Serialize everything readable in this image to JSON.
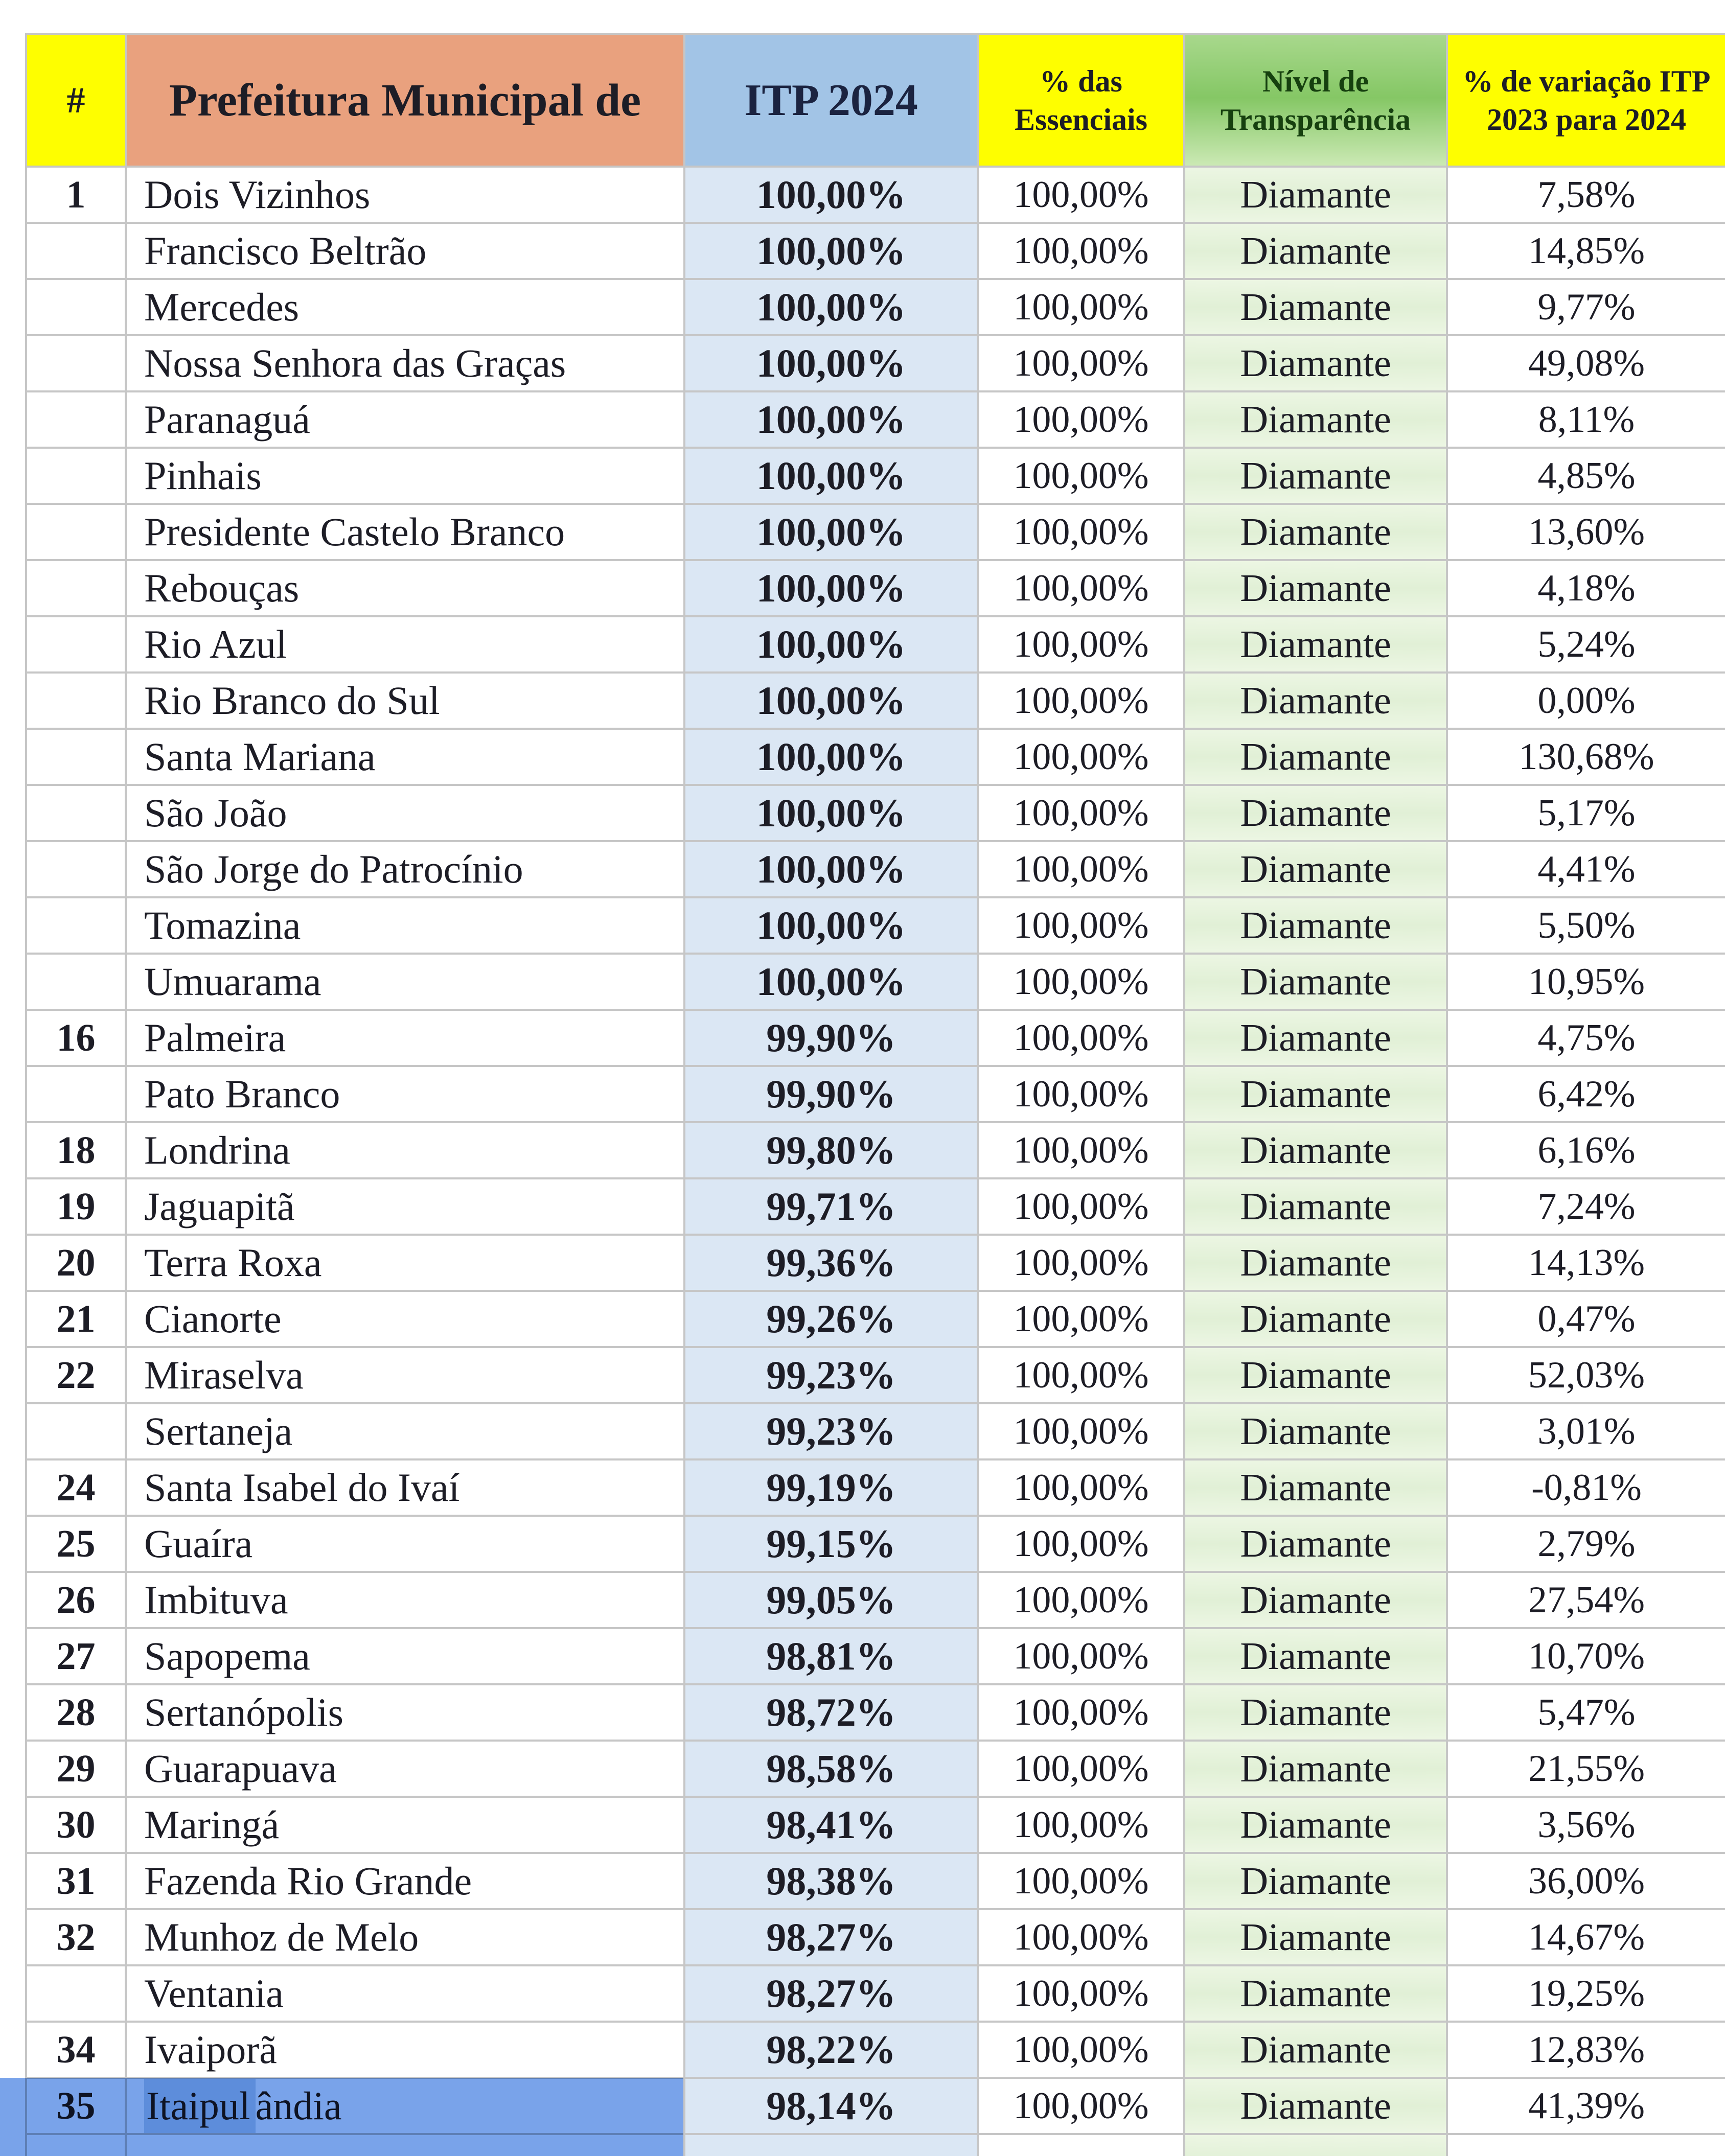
{
  "document": {
    "kind": "municipal-transparency-ranking-table",
    "language": "pt-BR"
  },
  "table": {
    "columns": [
      {
        "id": "rank",
        "label": "#"
      },
      {
        "id": "name",
        "label": "Prefeitura Municipal de"
      },
      {
        "id": "itp",
        "label": "ITP 2024"
      },
      {
        "id": "essenciais",
        "label": "% das Essenciais"
      },
      {
        "id": "nivel",
        "label": "Nível de Transparência"
      },
      {
        "id": "variacao",
        "label": "% de variação ITP 2023 para 2024"
      }
    ],
    "rows": [
      {
        "rank": "1",
        "name": "Dois Vizinhos",
        "itp": "100,00%",
        "essenciais": "100,00%",
        "nivel": "Diamante",
        "variacao": "7,58%",
        "highlighted": false
      },
      {
        "rank": "",
        "name": "Francisco Beltrão",
        "itp": "100,00%",
        "essenciais": "100,00%",
        "nivel": "Diamante",
        "variacao": "14,85%",
        "highlighted": false
      },
      {
        "rank": "",
        "name": "Mercedes",
        "itp": "100,00%",
        "essenciais": "100,00%",
        "nivel": "Diamante",
        "variacao": "9,77%",
        "highlighted": false
      },
      {
        "rank": "",
        "name": "Nossa Senhora das Graças",
        "itp": "100,00%",
        "essenciais": "100,00%",
        "nivel": "Diamante",
        "variacao": "49,08%",
        "highlighted": false
      },
      {
        "rank": "",
        "name": "Paranaguá",
        "itp": "100,00%",
        "essenciais": "100,00%",
        "nivel": "Diamante",
        "variacao": "8,11%",
        "highlighted": false
      },
      {
        "rank": "",
        "name": "Pinhais",
        "itp": "100,00%",
        "essenciais": "100,00%",
        "nivel": "Diamante",
        "variacao": "4,85%",
        "highlighted": false
      },
      {
        "rank": "",
        "name": "Presidente Castelo Branco",
        "itp": "100,00%",
        "essenciais": "100,00%",
        "nivel": "Diamante",
        "variacao": "13,60%",
        "highlighted": false
      },
      {
        "rank": "",
        "name": "Rebouças",
        "itp": "100,00%",
        "essenciais": "100,00%",
        "nivel": "Diamante",
        "variacao": "4,18%",
        "highlighted": false
      },
      {
        "rank": "",
        "name": "Rio Azul",
        "itp": "100,00%",
        "essenciais": "100,00%",
        "nivel": "Diamante",
        "variacao": "5,24%",
        "highlighted": false
      },
      {
        "rank": "",
        "name": "Rio Branco do Sul",
        "itp": "100,00%",
        "essenciais": "100,00%",
        "nivel": "Diamante",
        "variacao": "0,00%",
        "highlighted": false
      },
      {
        "rank": "",
        "name": "Santa Mariana",
        "itp": "100,00%",
        "essenciais": "100,00%",
        "nivel": "Diamante",
        "variacao": "130,68%",
        "highlighted": false
      },
      {
        "rank": "",
        "name": "São João",
        "itp": "100,00%",
        "essenciais": "100,00%",
        "nivel": "Diamante",
        "variacao": "5,17%",
        "highlighted": false
      },
      {
        "rank": "",
        "name": "São Jorge do Patrocínio",
        "itp": "100,00%",
        "essenciais": "100,00%",
        "nivel": "Diamante",
        "variacao": "4,41%",
        "highlighted": false
      },
      {
        "rank": "",
        "name": "Tomazina",
        "itp": "100,00%",
        "essenciais": "100,00%",
        "nivel": "Diamante",
        "variacao": "5,50%",
        "highlighted": false
      },
      {
        "rank": "",
        "name": "Umuarama",
        "itp": "100,00%",
        "essenciais": "100,00%",
        "nivel": "Diamante",
        "variacao": "10,95%",
        "highlighted": false
      },
      {
        "rank": "16",
        "name": "Palmeira",
        "itp": "99,90%",
        "essenciais": "100,00%",
        "nivel": "Diamante",
        "variacao": "4,75%",
        "highlighted": false
      },
      {
        "rank": "",
        "name": "Pato Branco",
        "itp": "99,90%",
        "essenciais": "100,00%",
        "nivel": "Diamante",
        "variacao": "6,42%",
        "highlighted": false
      },
      {
        "rank": "18",
        "name": "Londrina",
        "itp": "99,80%",
        "essenciais": "100,00%",
        "nivel": "Diamante",
        "variacao": "6,16%",
        "highlighted": false
      },
      {
        "rank": "19",
        "name": "Jaguapitã",
        "itp": "99,71%",
        "essenciais": "100,00%",
        "nivel": "Diamante",
        "variacao": "7,24%",
        "highlighted": false
      },
      {
        "rank": "20",
        "name": "Terra Roxa",
        "itp": "99,36%",
        "essenciais": "100,00%",
        "nivel": "Diamante",
        "variacao": "14,13%",
        "highlighted": false
      },
      {
        "rank": "21",
        "name": "Cianorte",
        "itp": "99,26%",
        "essenciais": "100,00%",
        "nivel": "Diamante",
        "variacao": "0,47%",
        "highlighted": false
      },
      {
        "rank": "22",
        "name": "Miraselva",
        "itp": "99,23%",
        "essenciais": "100,00%",
        "nivel": "Diamante",
        "variacao": "52,03%",
        "highlighted": false
      },
      {
        "rank": "",
        "name": "Sertaneja",
        "itp": "99,23%",
        "essenciais": "100,00%",
        "nivel": "Diamante",
        "variacao": "3,01%",
        "highlighted": false
      },
      {
        "rank": "24",
        "name": "Santa Isabel do Ivaí",
        "itp": "99,19%",
        "essenciais": "100,00%",
        "nivel": "Diamante",
        "variacao": "-0,81%",
        "highlighted": false
      },
      {
        "rank": "25",
        "name": "Guaíra",
        "itp": "99,15%",
        "essenciais": "100,00%",
        "nivel": "Diamante",
        "variacao": "2,79%",
        "highlighted": false
      },
      {
        "rank": "26",
        "name": "Imbituva",
        "itp": "99,05%",
        "essenciais": "100,00%",
        "nivel": "Diamante",
        "variacao": "27,54%",
        "highlighted": false
      },
      {
        "rank": "27",
        "name": "Sapopema",
        "itp": "98,81%",
        "essenciais": "100,00%",
        "nivel": "Diamante",
        "variacao": "10,70%",
        "highlighted": false
      },
      {
        "rank": "28",
        "name": "Sertanópolis",
        "itp": "98,72%",
        "essenciais": "100,00%",
        "nivel": "Diamante",
        "variacao": "5,47%",
        "highlighted": false
      },
      {
        "rank": "29",
        "name": "Guarapuava",
        "itp": "98,58%",
        "essenciais": "100,00%",
        "nivel": "Diamante",
        "variacao": "21,55%",
        "highlighted": false
      },
      {
        "rank": "30",
        "name": "Maringá",
        "itp": "98,41%",
        "essenciais": "100,00%",
        "nivel": "Diamante",
        "variacao": "3,56%",
        "highlighted": false
      },
      {
        "rank": "31",
        "name": "Fazenda Rio Grande",
        "itp": "98,38%",
        "essenciais": "100,00%",
        "nivel": "Diamante",
        "variacao": "36,00%",
        "highlighted": false
      },
      {
        "rank": "32",
        "name": "Munhoz de Melo",
        "itp": "98,27%",
        "essenciais": "100,00%",
        "nivel": "Diamante",
        "variacao": "14,67%",
        "highlighted": false
      },
      {
        "rank": "",
        "name": "Ventania",
        "itp": "98,27%",
        "essenciais": "100,00%",
        "nivel": "Diamante",
        "variacao": "19,25%",
        "highlighted": false
      },
      {
        "rank": "34",
        "name": "Ivaiporã",
        "itp": "98,22%",
        "essenciais": "100,00%",
        "nivel": "Diamante",
        "variacao": "12,83%",
        "highlighted": false
      },
      {
        "rank": "35",
        "name": "Itaipulândia",
        "itp": "98,14%",
        "essenciais": "100,00%",
        "nivel": "Diamante",
        "variacao": "41,39%",
        "highlighted": true
      }
    ]
  },
  "selection": {
    "row_index": 34,
    "selected_text_prefix": "Itaipul"
  },
  "colors": {
    "header_yellow": "#fefe00",
    "header_salmon": "#e9a17e",
    "header_blue": "#a2c4e6",
    "header_green": "#85c765",
    "header_green_light": "#a8d88c",
    "header_green_pale": "#cbe9b4",
    "cell_blue": "#dbe7f4",
    "cell_green": "#e1f0d6",
    "grid": "#c6c6c6",
    "text": "#1d1d26",
    "selection_highlight": "#79a3ea",
    "selection_dark": "#5d92df"
  }
}
